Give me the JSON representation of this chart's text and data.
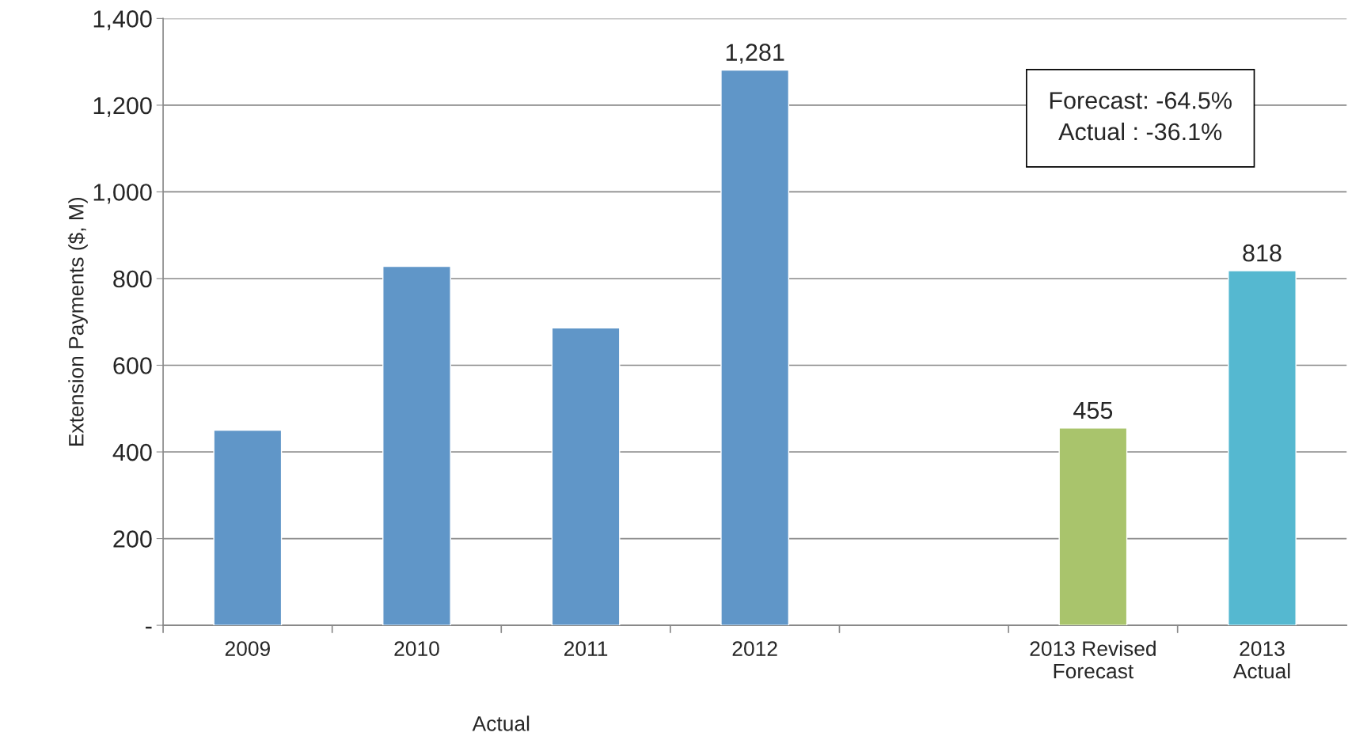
{
  "chart_data": {
    "type": "bar",
    "ylabel": "Extension Payments ($, M)",
    "categories": [
      "2009",
      "2010",
      "2011",
      "2012",
      null,
      "2013 Revised\nForecast",
      "2013\nActual"
    ],
    "values": [
      450,
      828,
      686,
      1281,
      null,
      455,
      818
    ],
    "colors": [
      "#6096c8",
      "#6096c8",
      "#6096c8",
      "#6096c8",
      "#6096c8",
      "#a9c46c",
      "#55b8d0"
    ],
    "value_labels": [
      null,
      null,
      null,
      "1,281",
      null,
      "455",
      "818"
    ],
    "ylim": [
      0,
      1400
    ],
    "yticks": [
      {
        "value": 0,
        "label": "-"
      },
      200,
      400,
      600,
      800,
      {
        "value": 1000,
        "label": "1,000"
      },
      {
        "value": 1200,
        "label": "1,200"
      },
      {
        "value": 1400,
        "label": "1,400"
      }
    ],
    "grid": "y",
    "legend": false,
    "annotations": [
      "Forecast: -64.5%\nActual : -36.1%",
      "Actual"
    ]
  }
}
